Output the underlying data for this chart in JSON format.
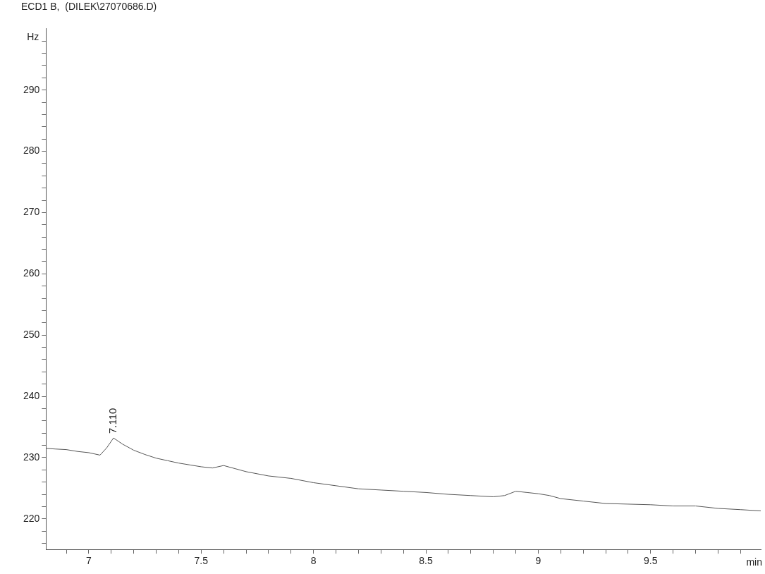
{
  "chart_data": {
    "type": "line",
    "title": "ECD1 B,  (DILEK\\27070686.D)",
    "xlabel": "min",
    "ylabel": "Hz",
    "x": [
      6.81,
      6.85,
      6.9,
      6.95,
      7.0,
      7.05,
      7.08,
      7.11,
      7.15,
      7.2,
      7.25,
      7.3,
      7.35,
      7.4,
      7.45,
      7.5,
      7.55,
      7.6,
      7.65,
      7.7,
      7.8,
      7.9,
      8.0,
      8.1,
      8.2,
      8.3,
      8.4,
      8.5,
      8.6,
      8.7,
      8.8,
      8.85,
      8.9,
      8.95,
      9.0,
      9.05,
      9.1,
      9.2,
      9.3,
      9.4,
      9.5,
      9.6,
      9.7,
      9.8,
      9.9,
      9.99
    ],
    "series": [
      {
        "color": "#555555",
        "values": [
          231.5,
          231.4,
          231.3,
          231.0,
          230.8,
          230.4,
          231.6,
          233.2,
          232.2,
          231.2,
          230.5,
          229.9,
          229.5,
          229.1,
          228.8,
          228.5,
          228.3,
          228.7,
          228.2,
          227.7,
          227.0,
          226.6,
          225.9,
          225.4,
          224.9,
          224.7,
          224.5,
          224.3,
          224.0,
          223.8,
          223.6,
          223.8,
          224.5,
          224.3,
          224.1,
          223.8,
          223.3,
          222.9,
          222.5,
          222.4,
          222.3,
          222.1,
          222.1,
          221.7,
          221.5,
          221.3
        ]
      }
    ],
    "xlim": [
      6.81,
      9.99
    ],
    "xticks": [
      {
        "value": 6.9,
        "label": null
      },
      7,
      {
        "value": 7.1,
        "label": null
      },
      {
        "value": 7.2,
        "label": null
      },
      {
        "value": 7.3,
        "label": null
      },
      {
        "value": 7.4,
        "label": null
      },
      7.5,
      {
        "value": 7.6,
        "label": null
      },
      {
        "value": 7.7,
        "label": null
      },
      {
        "value": 7.8,
        "label": null
      },
      {
        "value": 7.9,
        "label": null
      },
      8,
      {
        "value": 8.1,
        "label": null
      },
      {
        "value": 8.2,
        "label": null
      },
      {
        "value": 8.3,
        "label": null
      },
      {
        "value": 8.4,
        "label": null
      },
      8.5,
      {
        "value": 8.6,
        "label": null
      },
      {
        "value": 8.7,
        "label": null
      },
      {
        "value": 8.8,
        "label": null
      },
      {
        "value": 8.9,
        "label": null
      },
      9,
      {
        "value": 9.1,
        "label": null
      },
      {
        "value": 9.2,
        "label": null
      },
      {
        "value": 9.3,
        "label": null
      },
      {
        "value": 9.4,
        "label": null
      },
      9.5,
      {
        "value": 9.6,
        "label": null
      },
      {
        "value": 9.7,
        "label": null
      },
      {
        "value": 9.8,
        "label": null
      },
      {
        "value": 9.9,
        "label": null
      }
    ],
    "ylim": [
      215,
      300
    ],
    "yticks": [
      {
        "value": 216,
        "label": null
      },
      {
        "value": 218,
        "label": null
      },
      220,
      {
        "value": 222,
        "label": null
      },
      {
        "value": 224,
        "label": null
      },
      {
        "value": 226,
        "label": null
      },
      {
        "value": 228,
        "label": null
      },
      230,
      {
        "value": 232,
        "label": null
      },
      {
        "value": 234,
        "label": null
      },
      {
        "value": 236,
        "label": null
      },
      {
        "value": 238,
        "label": null
      },
      240,
      {
        "value": 242,
        "label": null
      },
      {
        "value": 244,
        "label": null
      },
      {
        "value": 246,
        "label": null
      },
      {
        "value": 248,
        "label": null
      },
      250,
      {
        "value": 252,
        "label": null
      },
      {
        "value": 254,
        "label": null
      },
      {
        "value": 256,
        "label": null
      },
      {
        "value": 258,
        "label": null
      },
      260,
      {
        "value": 262,
        "label": null
      },
      {
        "value": 264,
        "label": null
      },
      {
        "value": 266,
        "label": null
      },
      {
        "value": 268,
        "label": null
      },
      270,
      {
        "value": 272,
        "label": null
      },
      {
        "value": 274,
        "label": null
      },
      {
        "value": 276,
        "label": null
      },
      {
        "value": 278,
        "label": null
      },
      280,
      {
        "value": 282,
        "label": null
      },
      {
        "value": 284,
        "label": null
      },
      {
        "value": 286,
        "label": null
      },
      {
        "value": 288,
        "label": null
      },
      290,
      {
        "value": 292,
        "label": null
      },
      {
        "value": 294,
        "label": null
      },
      {
        "value": 296,
        "label": null
      },
      {
        "value": 298,
        "label": null
      }
    ],
    "annotations": [
      {
        "text": "7.110",
        "x": 7.11,
        "y": 233.2
      }
    ],
    "grid": false,
    "legend": false,
    "marker": "none",
    "line_style": "solid"
  }
}
